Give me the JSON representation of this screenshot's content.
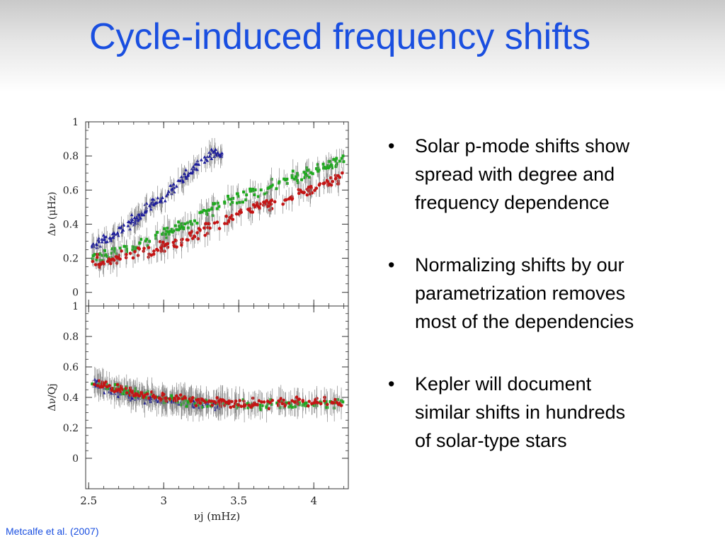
{
  "slide": {
    "title": "Cycle-induced frequency shifts",
    "bullets": [
      {
        "lines": [
          "Solar p-mode shifts show",
          "spread with degree and",
          "frequency dependence"
        ]
      },
      {
        "lines": [
          "Normalizing shifts by our",
          "parametrization removes",
          "most of the dependencies"
        ]
      },
      {
        "lines": [
          "Kepler will document",
          "similar shifts in hundreds",
          "of solar-type stars"
        ]
      }
    ],
    "citation": "Metcalfe et al. (2007)"
  },
  "chart_data": [
    {
      "type": "scatter",
      "panel": "top",
      "title": "",
      "ylabel": "Δν (μHz)",
      "xlabel": "",
      "xlim": [
        2.48,
        4.23
      ],
      "ylim": [
        -0.08,
        1.0
      ],
      "yticks": [
        0,
        0.2,
        0.4,
        0.6,
        0.8,
        1
      ],
      "ytick_labels": [
        "0",
        "0.2",
        "0.4",
        "0.6",
        "0.8",
        "1"
      ],
      "series": [
        {
          "color": "#1c1c9c",
          "marker": "triangle",
          "x": [
            2.52,
            2.6,
            2.7,
            2.8,
            2.9,
            3.0,
            3.1,
            3.2,
            3.3,
            3.4
          ],
          "y": [
            0.26,
            0.3,
            0.36,
            0.42,
            0.5,
            0.56,
            0.64,
            0.72,
            0.8,
            0.82
          ]
        },
        {
          "color": "#1faa1f",
          "marker": "square",
          "x": [
            2.52,
            2.7,
            2.9,
            3.1,
            3.3,
            3.5,
            3.7,
            3.9,
            4.1,
            4.2
          ],
          "y": [
            0.2,
            0.24,
            0.3,
            0.38,
            0.48,
            0.56,
            0.62,
            0.68,
            0.74,
            0.78
          ]
        },
        {
          "color": "#c41414",
          "marker": "circle",
          "x": [
            2.52,
            2.7,
            2.9,
            3.1,
            3.3,
            3.5,
            3.7,
            3.9,
            4.1,
            4.2
          ],
          "y": [
            0.17,
            0.2,
            0.24,
            0.3,
            0.38,
            0.46,
            0.52,
            0.58,
            0.64,
            0.68
          ]
        }
      ]
    },
    {
      "type": "scatter",
      "panel": "bottom",
      "title": "",
      "ylabel": "Δν/Qj",
      "xlabel": "νj (mHz)",
      "xlim": [
        2.48,
        4.23
      ],
      "ylim": [
        -0.2,
        1.0
      ],
      "yticks": [
        0,
        0.2,
        0.4,
        0.6,
        0.8,
        1
      ],
      "ytick_labels": [
        "0",
        "0.2",
        "0.4",
        "0.6",
        "0.8",
        "1"
      ],
      "xticks": [
        2.5,
        3,
        3.5,
        4
      ],
      "xtick_labels": [
        "2.5",
        "3",
        "3.5",
        "4"
      ],
      "series": [
        {
          "color": "#1c1c9c",
          "marker": "triangle",
          "x": [
            2.52,
            2.6,
            2.7,
            2.8,
            2.9,
            3.0,
            3.1,
            3.2,
            3.3,
            3.4
          ],
          "y": [
            0.5,
            0.46,
            0.43,
            0.41,
            0.39,
            0.38,
            0.37,
            0.36,
            0.35,
            0.34
          ]
        },
        {
          "color": "#1faa1f",
          "marker": "square",
          "x": [
            2.52,
            2.7,
            2.9,
            3.1,
            3.3,
            3.5,
            3.7,
            3.9,
            4.1,
            4.2
          ],
          "y": [
            0.5,
            0.45,
            0.41,
            0.38,
            0.36,
            0.35,
            0.35,
            0.36,
            0.36,
            0.36
          ]
        },
        {
          "color": "#c41414",
          "marker": "circle",
          "x": [
            2.52,
            2.7,
            2.9,
            3.1,
            3.3,
            3.5,
            3.7,
            3.9,
            4.1,
            4.2
          ],
          "y": [
            0.5,
            0.45,
            0.41,
            0.39,
            0.37,
            0.36,
            0.36,
            0.37,
            0.37,
            0.37
          ]
        }
      ]
    }
  ]
}
